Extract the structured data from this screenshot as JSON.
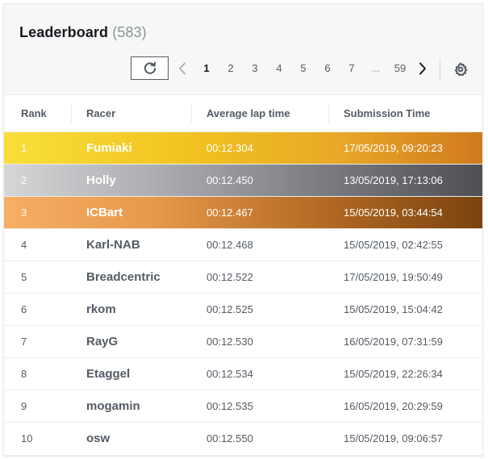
{
  "leaderboard": {
    "title": "Leaderboard",
    "count": "(583)"
  },
  "pagination": {
    "pages": [
      "1",
      "2",
      "3",
      "4",
      "5",
      "6",
      "7"
    ],
    "ellipsis": "...",
    "last_page": "59",
    "current_page": "1",
    "icons": {
      "refresh": "refresh-icon",
      "prev": "chevron-left-icon",
      "next": "chevron-right-icon",
      "settings": "gear-icon"
    }
  },
  "table": {
    "columns": {
      "rank": "Rank",
      "racer": "Racer",
      "lap": "Average lap time",
      "time": "Submission Time"
    },
    "medal_colors": {
      "gold": "#f1c21f",
      "silver": "#a8a9ad",
      "bronze": "#e79a4c"
    },
    "rows": [
      {
        "rank": "1",
        "racer": "Fumiaki",
        "lap": "00:12.304",
        "time": "17/05/2019, 09:20:23"
      },
      {
        "rank": "2",
        "racer": "Holly",
        "lap": "00:12.450",
        "time": "13/05/2019, 17:13:06"
      },
      {
        "rank": "3",
        "racer": "ICBart",
        "lap": "00:12.467",
        "time": "15/05/2019, 03:44:54"
      },
      {
        "rank": "4",
        "racer": "Karl-NAB",
        "lap": "00:12.468",
        "time": "15/05/2019, 02:42:55"
      },
      {
        "rank": "5",
        "racer": "Breadcentric",
        "lap": "00:12.522",
        "time": "17/05/2019, 19:50:49"
      },
      {
        "rank": "6",
        "racer": "rkom",
        "lap": "00:12.525",
        "time": "15/05/2019, 15:04:42"
      },
      {
        "rank": "7",
        "racer": "RayG",
        "lap": "00:12.530",
        "time": "16/05/2019, 07:31:59"
      },
      {
        "rank": "8",
        "racer": "Etaggel",
        "lap": "00:12.534",
        "time": "15/05/2019, 22:26:34"
      },
      {
        "rank": "9",
        "racer": "mogamin",
        "lap": "00:12.535",
        "time": "16/05/2019, 20:29:59"
      },
      {
        "rank": "10",
        "racer": "osw",
        "lap": "00:12.550",
        "time": "15/05/2019, 09:06:57"
      }
    ]
  }
}
